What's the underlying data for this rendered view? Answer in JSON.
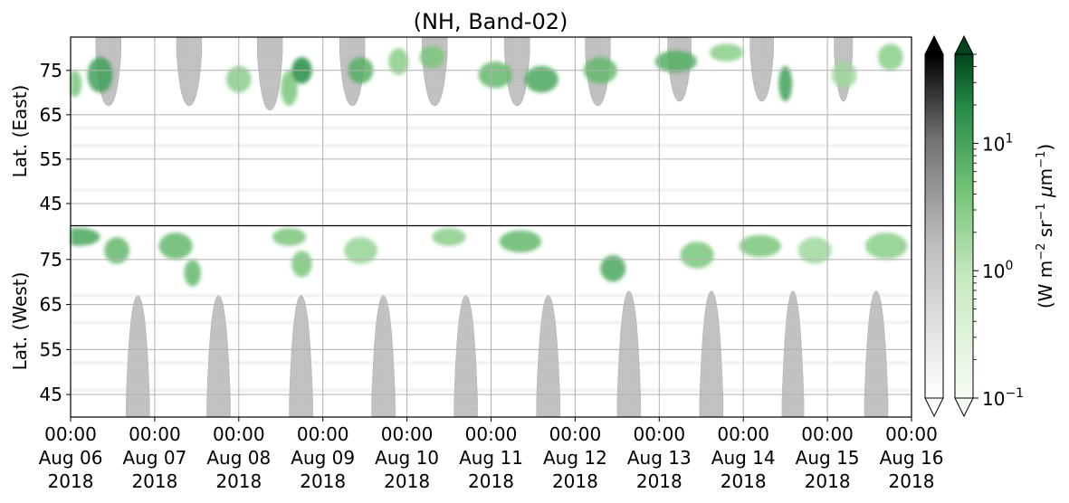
{
  "chart_data": {
    "type": "heatmap",
    "title": "(NH, Band-02)",
    "ylabel_top": "Lat. (East)",
    "ylabel_bottom": "Lat. (West)",
    "x": {
      "range": [
        "2018-08-06 00:00",
        "2018-08-16 00:00"
      ],
      "ticks": [
        {
          "l1": "00:00",
          "l2": "Aug 06",
          "l3": "2018"
        },
        {
          "l1": "00:00",
          "l2": "Aug 07",
          "l3": "2018"
        },
        {
          "l1": "00:00",
          "l2": "Aug 08",
          "l3": "2018"
        },
        {
          "l1": "00:00",
          "l2": "Aug 09",
          "l3": "2018"
        },
        {
          "l1": "00:00",
          "l2": "Aug 10",
          "l3": "2018"
        },
        {
          "l1": "00:00",
          "l2": "Aug 11",
          "l3": "2018"
        },
        {
          "l1": "00:00",
          "l2": "Aug 12",
          "l3": "2018"
        },
        {
          "l1": "00:00",
          "l2": "Aug 13",
          "l3": "2018"
        },
        {
          "l1": "00:00",
          "l2": "Aug 14",
          "l3": "2018"
        },
        {
          "l1": "00:00",
          "l2": "Aug 15",
          "l3": "2018"
        },
        {
          "l1": "00:00",
          "l2": "Aug 16",
          "l3": "2018"
        }
      ]
    },
    "y_top": {
      "range": [
        40,
        82.5
      ],
      "ticks": [
        "45",
        "55",
        "65",
        "75"
      ],
      "values": [
        45,
        55,
        65,
        75
      ]
    },
    "y_bottom": {
      "range": [
        82.5,
        40
      ],
      "ticks": [
        "75",
        "65",
        "55",
        "45"
      ],
      "values": [
        75,
        65,
        55,
        45
      ]
    },
    "grid": true,
    "daylight_masks_east": [
      {
        "start_day": 0.3,
        "end_day": 0.6,
        "min_lat": 67
      },
      {
        "start_day": 1.26,
        "end_day": 1.56,
        "min_lat": 67
      },
      {
        "start_day": 2.22,
        "end_day": 2.52,
        "min_lat": 66
      },
      {
        "start_day": 3.2,
        "end_day": 3.5,
        "min_lat": 67
      },
      {
        "start_day": 4.18,
        "end_day": 4.48,
        "min_lat": 67
      },
      {
        "start_day": 5.16,
        "end_day": 5.46,
        "min_lat": 67
      },
      {
        "start_day": 6.12,
        "end_day": 6.42,
        "min_lat": 67
      },
      {
        "start_day": 7.1,
        "end_day": 7.38,
        "min_lat": 68
      },
      {
        "start_day": 8.08,
        "end_day": 8.36,
        "min_lat": 68
      },
      {
        "start_day": 9.08,
        "end_day": 9.3,
        "min_lat": 68
      }
    ],
    "daylight_masks_west": [
      {
        "start_day": 0.66,
        "end_day": 0.94,
        "min_lat": 67
      },
      {
        "start_day": 1.62,
        "end_day": 1.9,
        "min_lat": 67
      },
      {
        "start_day": 2.6,
        "end_day": 2.88,
        "min_lat": 67
      },
      {
        "start_day": 3.58,
        "end_day": 3.86,
        "min_lat": 67
      },
      {
        "start_day": 4.56,
        "end_day": 4.84,
        "min_lat": 67
      },
      {
        "start_day": 5.54,
        "end_day": 5.82,
        "min_lat": 67
      },
      {
        "start_day": 6.5,
        "end_day": 6.78,
        "min_lat": 68
      },
      {
        "start_day": 7.48,
        "end_day": 7.76,
        "min_lat": 68
      },
      {
        "start_day": 8.46,
        "end_day": 8.72,
        "min_lat": 68
      },
      {
        "start_day": 9.44,
        "end_day": 9.72,
        "min_lat": 68
      }
    ],
    "emission_patches": [
      {
        "side": "east",
        "day": 0.35,
        "lat": 74,
        "sx": 0.15,
        "sy": 4,
        "v": 6
      },
      {
        "side": "east",
        "day": 0.05,
        "lat": 72,
        "sx": 0.08,
        "sy": 3,
        "v": 2
      },
      {
        "side": "east",
        "day": 2.0,
        "lat": 73,
        "sx": 0.15,
        "sy": 3,
        "v": 1.5
      },
      {
        "side": "east",
        "day": 2.6,
        "lat": 71,
        "sx": 0.1,
        "sy": 4,
        "v": 2
      },
      {
        "side": "east",
        "day": 2.75,
        "lat": 75,
        "sx": 0.12,
        "sy": 3,
        "v": 10
      },
      {
        "side": "east",
        "day": 3.45,
        "lat": 75,
        "sx": 0.15,
        "sy": 3,
        "v": 4
      },
      {
        "side": "east",
        "day": 3.9,
        "lat": 77,
        "sx": 0.12,
        "sy": 3,
        "v": 1.5
      },
      {
        "side": "east",
        "day": 4.3,
        "lat": 78,
        "sx": 0.15,
        "sy": 2.5,
        "v": 2
      },
      {
        "side": "east",
        "day": 5.05,
        "lat": 74,
        "sx": 0.2,
        "sy": 3,
        "v": 3
      },
      {
        "side": "east",
        "day": 5.6,
        "lat": 73,
        "sx": 0.2,
        "sy": 3,
        "v": 5
      },
      {
        "side": "east",
        "day": 6.3,
        "lat": 75,
        "sx": 0.2,
        "sy": 3,
        "v": 3
      },
      {
        "side": "east",
        "day": 7.2,
        "lat": 77,
        "sx": 0.25,
        "sy": 2.5,
        "v": 4
      },
      {
        "side": "east",
        "day": 7.8,
        "lat": 79,
        "sx": 0.2,
        "sy": 2,
        "v": 1.5
      },
      {
        "side": "east",
        "day": 8.5,
        "lat": 72,
        "sx": 0.08,
        "sy": 4,
        "v": 6
      },
      {
        "side": "east",
        "day": 9.2,
        "lat": 74,
        "sx": 0.15,
        "sy": 3,
        "v": 1
      },
      {
        "side": "east",
        "day": 9.75,
        "lat": 78,
        "sx": 0.15,
        "sy": 3,
        "v": 1.5
      },
      {
        "side": "west",
        "day": 0.1,
        "lat": 80,
        "sx": 0.25,
        "sy": 2,
        "v": 5
      },
      {
        "side": "west",
        "day": 0.55,
        "lat": 77,
        "sx": 0.15,
        "sy": 3,
        "v": 3
      },
      {
        "side": "west",
        "day": 1.25,
        "lat": 78,
        "sx": 0.2,
        "sy": 3,
        "v": 3
      },
      {
        "side": "west",
        "day": 1.45,
        "lat": 72,
        "sx": 0.1,
        "sy": 3,
        "v": 3
      },
      {
        "side": "west",
        "day": 2.6,
        "lat": 80,
        "sx": 0.2,
        "sy": 2,
        "v": 2
      },
      {
        "side": "west",
        "day": 2.75,
        "lat": 74,
        "sx": 0.12,
        "sy": 3,
        "v": 2
      },
      {
        "side": "west",
        "day": 3.45,
        "lat": 77,
        "sx": 0.2,
        "sy": 3,
        "v": 1.2
      },
      {
        "side": "west",
        "day": 4.5,
        "lat": 80,
        "sx": 0.2,
        "sy": 2,
        "v": 1.5
      },
      {
        "side": "west",
        "day": 5.35,
        "lat": 79,
        "sx": 0.25,
        "sy": 2.5,
        "v": 3
      },
      {
        "side": "west",
        "day": 6.45,
        "lat": 73,
        "sx": 0.15,
        "sy": 3,
        "v": 5
      },
      {
        "side": "west",
        "day": 7.45,
        "lat": 76,
        "sx": 0.2,
        "sy": 3,
        "v": 2
      },
      {
        "side": "west",
        "day": 8.2,
        "lat": 78,
        "sx": 0.25,
        "sy": 2.5,
        "v": 2
      },
      {
        "side": "west",
        "day": 8.85,
        "lat": 77,
        "sx": 0.2,
        "sy": 3,
        "v": 1
      },
      {
        "side": "west",
        "day": 9.7,
        "lat": 78,
        "sx": 0.25,
        "sy": 3,
        "v": 1.5
      }
    ],
    "colorbars": [
      {
        "name": "gray",
        "colors": [
          "#ffffff",
          "#bdbdbd",
          "#737373",
          "#000000"
        ],
        "extend": "both"
      },
      {
        "name": "green",
        "colors": [
          "#f7fcf5",
          "#c7e9c0",
          "#74c476",
          "#238b45",
          "#00441b"
        ],
        "extend": "both",
        "label": "(W m$^{-2}$ sr$^{-1}$ $\\mu$m$^{-1}$)",
        "ticks": [
          {
            "base": "10",
            "exp": "1",
            "value": 10
          },
          {
            "base": "10",
            "exp": "0",
            "value": 1
          },
          {
            "base": "10",
            "exp": "−1",
            "value": 0.1
          }
        ],
        "range": [
          0.1,
          50
        ],
        "scale": "log"
      }
    ]
  }
}
